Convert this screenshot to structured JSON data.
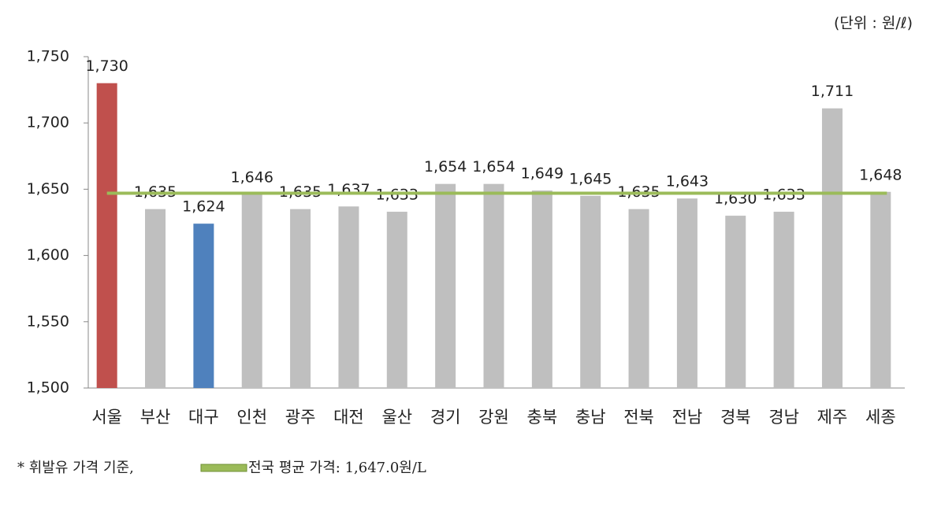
{
  "chart_data": {
    "type": "bar",
    "unit": "(단위 : 원/ℓ)",
    "categories": [
      "서울",
      "부산",
      "대구",
      "인천",
      "광주",
      "대전",
      "울산",
      "경기",
      "강원",
      "충북",
      "충남",
      "전북",
      "전남",
      "경북",
      "경남",
      "제주",
      "세종"
    ],
    "values": [
      1730,
      1635,
      1624,
      1646,
      1635,
      1637,
      1633,
      1654,
      1654,
      1649,
      1645,
      1635,
      1643,
      1630,
      1633,
      1711,
      1648
    ],
    "value_labels": [
      "1,730",
      "1,635",
      "1,624",
      "1,646",
      "1,635",
      "1,637",
      "1,633",
      "1,654",
      "1,654",
      "1,649",
      "1,645",
      "1,635",
      "1,643",
      "1,630",
      "1,633",
      "1,711",
      "1,648"
    ],
    "colors": [
      "#c0504d",
      "#bfbfbf",
      "#4f81bd",
      "#bfbfbf",
      "#bfbfbf",
      "#bfbfbf",
      "#bfbfbf",
      "#bfbfbf",
      "#bfbfbf",
      "#bfbfbf",
      "#bfbfbf",
      "#bfbfbf",
      "#bfbfbf",
      "#bfbfbf",
      "#bfbfbf",
      "#bfbfbf",
      "#bfbfbf"
    ],
    "ylim": [
      1500,
      1750
    ],
    "yticks": [
      {
        "value": 1500,
        "label": "1,500"
      },
      {
        "value": 1550,
        "label": "1,550"
      },
      {
        "value": 1600,
        "label": "1,600"
      },
      {
        "value": 1650,
        "label": "1,650"
      },
      {
        "value": 1700,
        "label": "1,700"
      },
      {
        "value": 1750,
        "label": "1,750"
      }
    ],
    "average_line": {
      "value": 1647.0,
      "label": "전국 평균 가격: 1,647.0원/L",
      "color": "#9bbb59"
    },
    "footnote": "* 휘발유 가격 기준,"
  }
}
